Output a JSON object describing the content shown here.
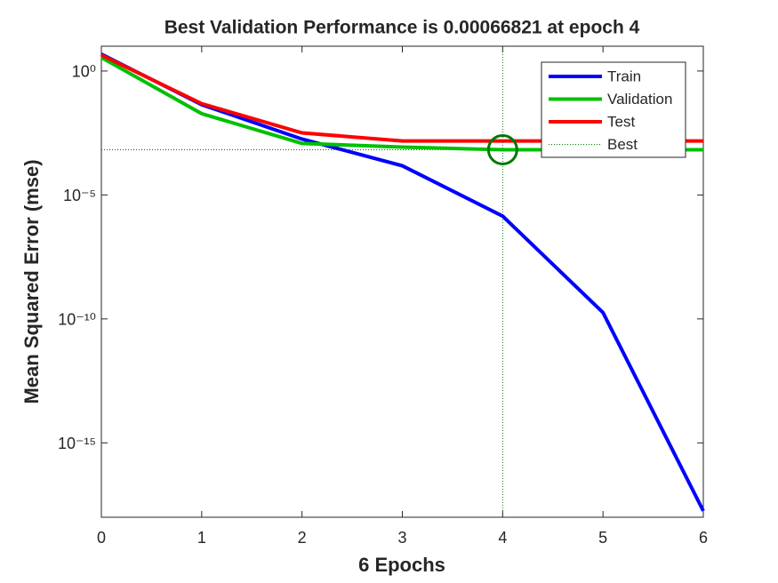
{
  "chart_data": {
    "type": "line",
    "title": "Best Validation Performance is 0.00066821 at epoch 4",
    "xlabel": "6 Epochs",
    "ylabel": "Mean Squared Error  (mse)",
    "x": [
      0,
      1,
      2,
      3,
      4,
      5,
      6
    ],
    "series": [
      {
        "name": "Train",
        "color": "#0000ff",
        "values": [
          4.8,
          0.044,
          0.0018,
          0.00015,
          1.4e-06,
          1.8e-10,
          1.8e-18
        ]
      },
      {
        "name": "Validation",
        "color": "#00c000",
        "values": [
          3.5,
          0.019,
          0.0012,
          0.00085,
          0.00066821,
          0.00066821,
          0.00066821
        ]
      },
      {
        "name": "Test",
        "color": "#ff0000",
        "values": [
          4.4,
          0.048,
          0.0032,
          0.0015,
          0.0015,
          0.0015,
          0.0015
        ]
      }
    ],
    "best": {
      "name": "Best",
      "x": 4,
      "value": 0.00066821,
      "color": "#007700"
    },
    "xlim": [
      0,
      6
    ],
    "xticks": [
      0,
      1,
      2,
      3,
      4,
      5,
      6
    ],
    "ylim": [
      1e-18,
      10
    ],
    "yticks": [
      {
        "value": 1,
        "label": "10⁰"
      },
      {
        "value": 1e-05,
        "label": "10⁻⁵"
      },
      {
        "value": 1e-10,
        "label": "10⁻¹⁰"
      },
      {
        "value": 1e-15,
        "label": "10⁻¹⁵"
      }
    ],
    "yscale": "log",
    "grid": false,
    "legend": "upper right"
  }
}
